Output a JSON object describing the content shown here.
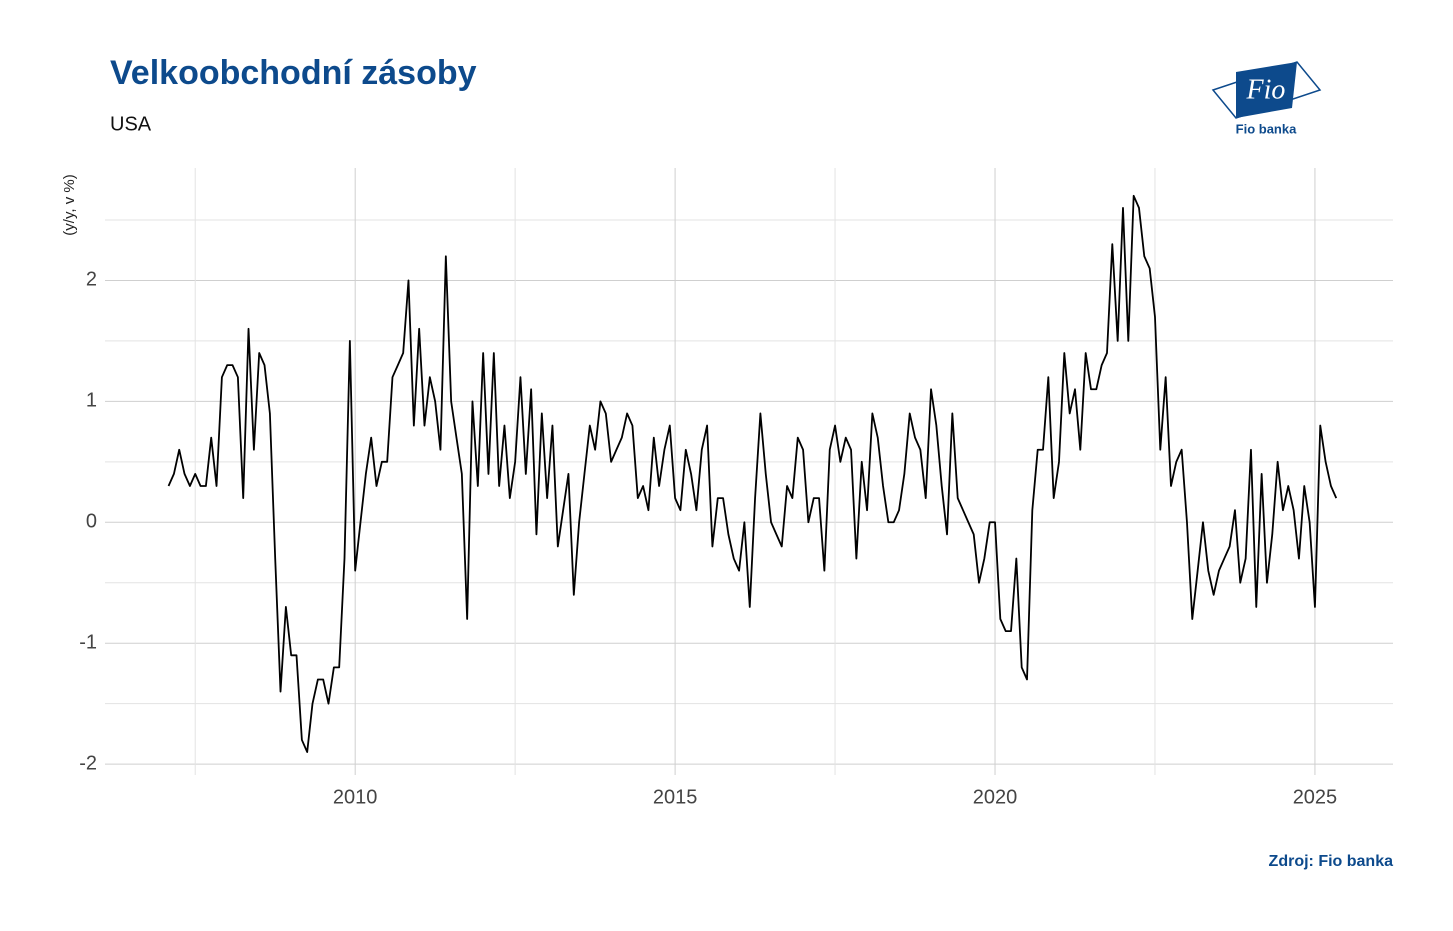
{
  "chart_data": {
    "type": "line",
    "title": "Velkoobchodní zásoby",
    "subtitle": "USA",
    "y_label": "(y/y, v %)",
    "source": "Zdroj: Fio banka",
    "color": "#000000",
    "grid": true,
    "xlim": [
      2006.09,
      2026.22
    ],
    "xticks": [
      2010,
      2015,
      2020,
      2025
    ],
    "ylim": [
      -2.09,
      2.93
    ],
    "yticks": [
      -2,
      -1,
      0,
      1,
      2
    ],
    "x": [
      2007.083,
      2007.167,
      2007.25,
      2007.333,
      2007.417,
      2007.5,
      2007.583,
      2007.667,
      2007.75,
      2007.833,
      2007.917,
      2008,
      2008.083,
      2008.167,
      2008.25,
      2008.333,
      2008.417,
      2008.5,
      2008.583,
      2008.667,
      2008.75,
      2008.833,
      2008.917,
      2009,
      2009.083,
      2009.167,
      2009.25,
      2009.333,
      2009.417,
      2009.5,
      2009.583,
      2009.667,
      2009.75,
      2009.833,
      2009.917,
      2010,
      2010.083,
      2010.167,
      2010.25,
      2010.333,
      2010.417,
      2010.5,
      2010.583,
      2010.667,
      2010.75,
      2010.833,
      2010.917,
      2011,
      2011.083,
      2011.167,
      2011.25,
      2011.333,
      2011.417,
      2011.5,
      2011.583,
      2011.667,
      2011.75,
      2011.833,
      2011.917,
      2012,
      2012.083,
      2012.167,
      2012.25,
      2012.333,
      2012.417,
      2012.5,
      2012.583,
      2012.667,
      2012.75,
      2012.833,
      2012.917,
      2013,
      2013.083,
      2013.167,
      2013.25,
      2013.333,
      2013.417,
      2013.5,
      2013.583,
      2013.667,
      2013.75,
      2013.833,
      2013.917,
      2014,
      2014.083,
      2014.167,
      2014.25,
      2014.333,
      2014.417,
      2014.5,
      2014.583,
      2014.667,
      2014.75,
      2014.833,
      2014.917,
      2015,
      2015.083,
      2015.167,
      2015.25,
      2015.333,
      2015.417,
      2015.5,
      2015.583,
      2015.667,
      2015.75,
      2015.833,
      2015.917,
      2016,
      2016.083,
      2016.167,
      2016.25,
      2016.333,
      2016.417,
      2016.5,
      2016.583,
      2016.667,
      2016.75,
      2016.833,
      2016.917,
      2017,
      2017.083,
      2017.167,
      2017.25,
      2017.333,
      2017.417,
      2017.5,
      2017.583,
      2017.667,
      2017.75,
      2017.833,
      2017.917,
      2018,
      2018.083,
      2018.167,
      2018.25,
      2018.333,
      2018.417,
      2018.5,
      2018.583,
      2018.667,
      2018.75,
      2018.833,
      2018.917,
      2019,
      2019.083,
      2019.167,
      2019.25,
      2019.333,
      2019.417,
      2019.5,
      2019.583,
      2019.667,
      2019.75,
      2019.833,
      2019.917,
      2020,
      2020.083,
      2020.167,
      2020.25,
      2020.333,
      2020.417,
      2020.5,
      2020.583,
      2020.667,
      2020.75,
      2020.833,
      2020.917,
      2021,
      2021.083,
      2021.167,
      2021.25,
      2021.333,
      2021.417,
      2021.5,
      2021.583,
      2021.667,
      2021.75,
      2021.833,
      2021.917,
      2022,
      2022.083,
      2022.167,
      2022.25,
      2022.333,
      2022.417,
      2022.5,
      2022.583,
      2022.667,
      2022.75,
      2022.833,
      2022.917,
      2023,
      2023.083,
      2023.167,
      2023.25,
      2023.333,
      2023.417,
      2023.5,
      2023.583,
      2023.667,
      2023.75,
      2023.833,
      2023.917,
      2024,
      2024.083,
      2024.167,
      2024.25,
      2024.333,
      2024.417,
      2024.5,
      2024.583,
      2024.667,
      2024.75,
      2024.833,
      2024.917,
      2025,
      2025.083,
      2025.167,
      2025.25,
      2025.333
    ],
    "values": [
      0.3,
      0.4,
      0.6,
      0.4,
      0.3,
      0.4,
      0.3,
      0.3,
      0.7,
      0.3,
      1.2,
      1.3,
      1.3,
      1.2,
      0.2,
      1.6,
      0.6,
      1.4,
      1.3,
      0.9,
      -0.3,
      -1.4,
      -0.7,
      -1.1,
      -1.1,
      -1.8,
      -1.9,
      -1.5,
      -1.3,
      -1.3,
      -1.5,
      -1.2,
      -1.2,
      -0.3,
      1.5,
      -0.4,
      0,
      0.4,
      0.7,
      0.3,
      0.5,
      0.5,
      1.2,
      1.3,
      1.4,
      2.0,
      0.8,
      1.6,
      0.8,
      1.2,
      1.0,
      0.6,
      2.2,
      1.0,
      0.7,
      0.4,
      -0.8,
      1.0,
      0.3,
      1.4,
      0.4,
      1.4,
      0.3,
      0.8,
      0.2,
      0.5,
      1.2,
      0.4,
      1.1,
      -0.1,
      0.9,
      0.2,
      0.8,
      -0.2,
      0.1,
      0.4,
      -0.6,
      0,
      0.4,
      0.8,
      0.6,
      1.0,
      0.9,
      0.5,
      0.6,
      0.7,
      0.9,
      0.8,
      0.2,
      0.3,
      0.1,
      0.7,
      0.3,
      0.6,
      0.8,
      0.2,
      0.1,
      0.6,
      0.4,
      0.1,
      0.6,
      0.8,
      -0.2,
      0.2,
      0.2,
      -0.1,
      -0.3,
      -0.4,
      0,
      -0.7,
      0.2,
      0.9,
      0.4,
      0,
      -0.1,
      -0.2,
      0.3,
      0.2,
      0.7,
      0.6,
      0,
      0.2,
      0.2,
      -0.4,
      0.6,
      0.8,
      0.5,
      0.7,
      0.6,
      -0.3,
      0.5,
      0.1,
      0.9,
      0.7,
      0.3,
      0,
      0,
      0.1,
      0.4,
      0.9,
      0.7,
      0.6,
      0.2,
      1.1,
      0.8,
      0.3,
      -0.1,
      0.9,
      0.2,
      0.1,
      0,
      -0.1,
      -0.5,
      -0.3,
      0,
      0,
      -0.8,
      -0.9,
      -0.9,
      -0.3,
      -1.2,
      -1.3,
      0.1,
      0.6,
      0.6,
      1.2,
      0.2,
      0.5,
      1.4,
      0.9,
      1.1,
      0.6,
      1.4,
      1.1,
      1.1,
      1.3,
      1.4,
      2.3,
      1.5,
      2.6,
      1.5,
      2.7,
      2.6,
      2.2,
      2.1,
      1.7,
      0.6,
      1.2,
      0.3,
      0.5,
      0.6,
      0,
      -0.8,
      -0.4,
      0,
      -0.4,
      -0.6,
      -0.4,
      -0.3,
      -0.2,
      0.1,
      -0.5,
      -0.3,
      0.6,
      -0.7,
      0.4,
      -0.5,
      -0.1,
      0.5,
      0.1,
      0.3,
      0.1,
      -0.3,
      0.3,
      0,
      -0.7,
      0.8,
      0.5,
      0.3,
      0.2
    ]
  },
  "logo": {
    "mark": "Fio",
    "name": "Fio banka"
  }
}
